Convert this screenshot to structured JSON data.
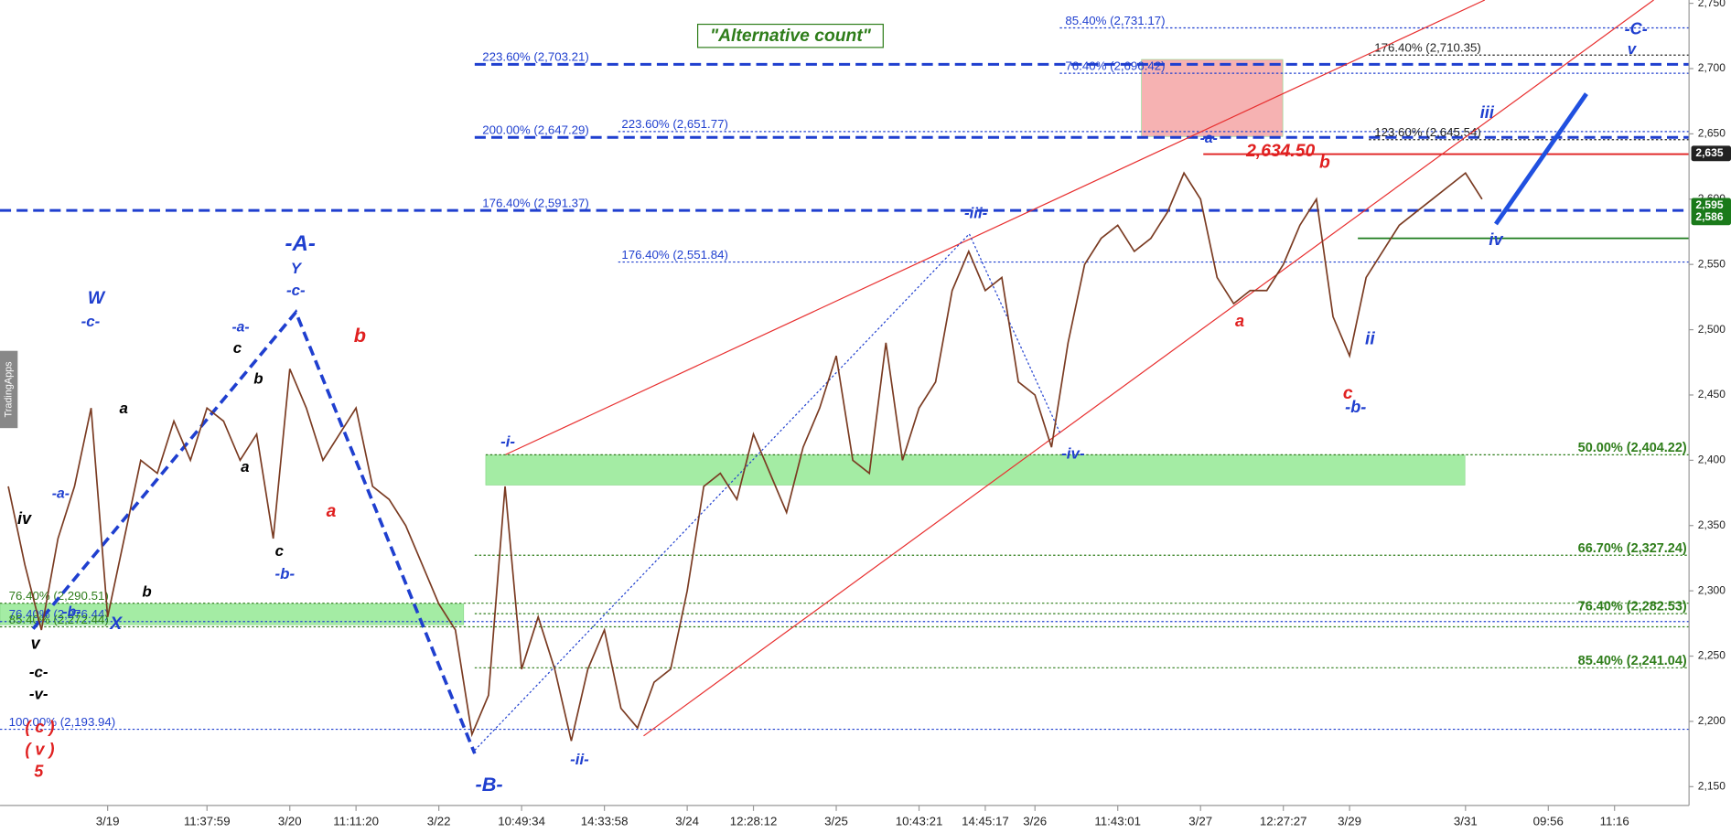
{
  "chart_data": {
    "type": "line",
    "title": "\"Alternative count\"",
    "watermark": "TradingApps",
    "categories": [
      null,
      null,
      null,
      null,
      null,
      null,
      "3/19",
      null,
      null,
      null,
      null,
      null,
      "11:37:59",
      null,
      null,
      null,
      null,
      "3/20",
      null,
      null,
      null,
      "11:11:20",
      null,
      null,
      null,
      null,
      "3/22",
      null,
      null,
      null,
      null,
      "10:49:34",
      null,
      null,
      null,
      null,
      "14:33:58",
      null,
      null,
      null,
      null,
      "3/24",
      null,
      null,
      null,
      "12:28:12",
      null,
      null,
      null,
      null,
      "3/25",
      null,
      null,
      null,
      null,
      "10:43:21",
      null,
      null,
      null,
      "14:45:17",
      null,
      null,
      "3/26",
      null,
      null,
      null,
      null,
      "11:43:01",
      null,
      null,
      null,
      null,
      "3/27",
      null,
      null,
      null,
      null,
      "12:27:27",
      null,
      null,
      null,
      "3/29",
      null,
      null,
      null,
      null,
      null,
      null,
      "3/31",
      null,
      null,
      null,
      null,
      "09:56",
      null,
      null,
      null,
      "11:16",
      null,
      null
    ],
    "series": [
      {
        "name": "Price",
        "color": "#7a3b22",
        "values": [
          2380,
          2320,
          2270,
          2340,
          2380,
          2440,
          2280,
          2340,
          2400,
          2390,
          2430,
          2400,
          2440,
          2430,
          2400,
          2420,
          2340,
          2470,
          2440,
          2400,
          2420,
          2440,
          2380,
          2370,
          2350,
          2320,
          2290,
          2270,
          2190,
          2220,
          2380,
          2240,
          2280,
          2240,
          2185,
          2240,
          2270,
          2210,
          2195,
          2230,
          2240,
          2300,
          2380,
          2390,
          2370,
          2420,
          2390,
          2360,
          2410,
          2440,
          2480,
          2400,
          2390,
          2490,
          2400,
          2440,
          2460,
          2530,
          2560,
          2530,
          2540,
          2460,
          2450,
          2410,
          2490,
          2550,
          2570,
          2580,
          2560,
          2570,
          2590,
          2620,
          2600,
          2540,
          2520,
          2530,
          2530,
          2550,
          2580,
          2600,
          2510,
          2480,
          2540,
          2560,
          2580,
          2590,
          2600,
          2610,
          2620,
          2600,
          null,
          null,
          null,
          null,
          null,
          null,
          null,
          null,
          null,
          null
        ]
      }
    ],
    "ylim": [
      2150,
      2750
    ],
    "yticks": [
      {
        "value": 2150,
        "label": "2,150"
      },
      {
        "value": 2200,
        "label": "2,200"
      },
      {
        "value": 2250,
        "label": "2,250"
      },
      {
        "value": 2300,
        "label": "2,300"
      },
      {
        "value": 2350,
        "label": "2,350"
      },
      {
        "value": 2400,
        "label": "2,400"
      },
      {
        "value": 2450,
        "label": "2,450"
      },
      {
        "value": 2500,
        "label": "2,500"
      },
      {
        "value": 2550,
        "label": "2,550"
      },
      {
        "value": 2600,
        "label": "2,600"
      },
      {
        "value": 2650,
        "label": "2,650"
      },
      {
        "value": 2700,
        "label": "2,700"
      },
      {
        "value": 2750,
        "label": "2,750"
      }
    ],
    "levels": [
      {
        "value": 2703.21,
        "label": "223.60% (2,703.21)",
        "color": "#1f3fcf",
        "style": "thick"
      },
      {
        "value": 2647.29,
        "label": "200.00% (2,647.29)",
        "color": "#1f3fcf",
        "style": "thick"
      },
      {
        "value": 2591.37,
        "label": "176.40% (2,591.37)",
        "color": "#1f3fcf",
        "style": "thick"
      },
      {
        "value": 2551.84,
        "label": "176.40% (2,551.84)",
        "color": "#1f3fcf",
        "style": "dotted"
      },
      {
        "value": 2651.77,
        "label": "223.60% (2,651.77)",
        "color": "#1f3fcf",
        "style": "dotted"
      },
      {
        "value": 2731.17,
        "label": "85.40% (2,731.17)",
        "color": "#1f3fcf",
        "style": "dotted"
      },
      {
        "value": 2696.42,
        "label": "76.40% (2,696.42)",
        "color": "#1f3fcf",
        "style": "dotted"
      },
      {
        "value": 2710.35,
        "label": "176.40% (2,710.35)",
        "color": "#222222",
        "style": "dotted"
      },
      {
        "value": 2645.54,
        "label": "123.60% (2,645.54)",
        "color": "#222222",
        "style": "dotted"
      },
      {
        "value": 2193.94,
        "label": "100.00% (2,193.94)",
        "color": "#1f3fcf",
        "style": "dotted"
      },
      {
        "value": 2290.51,
        "label": "76.40% (2,290.51)",
        "color": "#2e7d1a",
        "style": "dotted"
      },
      {
        "value": 2276.44,
        "label": "76.40% (2,276.44)",
        "color": "#1f3fcf",
        "style": "dotted"
      },
      {
        "value": 2272.44,
        "label": "85.40% (2,272.44)",
        "color": "#2e7d1a",
        "style": "dotted"
      },
      {
        "value": 2404.22,
        "label": "50.00% (2,404.22)",
        "color": "#2e7d1a",
        "style": "dotted"
      },
      {
        "value": 2327.24,
        "label": "66.70% (2,327.24)",
        "color": "#2e7d1a",
        "style": "dotted"
      },
      {
        "value": 2282.53,
        "label": "76.40% (2,282.53)",
        "color": "#2e7d1a",
        "style": "dotted"
      },
      {
        "value": 2241.04,
        "label": "85.40% (2,241.04)",
        "color": "#2e7d1a",
        "style": "dotted"
      },
      {
        "value": 2634.5,
        "label": "2,634.50",
        "color": "#e02020",
        "style": "solid"
      },
      {
        "value": 2570,
        "color": "#1a7a1a",
        "style": "solid"
      }
    ],
    "zones": [
      {
        "from": 2381,
        "to": 2404,
        "color": "#8ee88e"
      },
      {
        "from": 2274,
        "to": 2290,
        "color": "#8ee88e"
      },
      {
        "from": 2648,
        "to": 2707,
        "color": "#f5a0a0"
      }
    ],
    "price_tags": [
      {
        "value": 2635,
        "label": "2,635",
        "color": "#222222"
      },
      {
        "value": 2595,
        "label": "2,595",
        "color": "#1a7a1a"
      },
      {
        "value": 2586,
        "label": "2,586",
        "color": "#1a7a1a"
      }
    ],
    "annotations": [
      {
        "text": "-A-",
        "color": "#1f3fcf"
      },
      {
        "text": "Y",
        "color": "#1f3fcf"
      },
      {
        "text": "-c-",
        "color": "#1f3fcf"
      },
      {
        "text": "W",
        "color": "#1f3fcf"
      },
      {
        "text": "-c-",
        "color": "#1f3fcf"
      },
      {
        "text": "-a-",
        "color": "#1f3fcf"
      },
      {
        "text": "c",
        "color": "#000000"
      },
      {
        "text": "b",
        "color": "#000000"
      },
      {
        "text": "a",
        "color": "#000000"
      },
      {
        "text": "b",
        "color": "#e02020"
      },
      {
        "text": "a",
        "color": "#e02020"
      },
      {
        "text": "c",
        "color": "#000000"
      },
      {
        "text": "-b-",
        "color": "#1f3fcf"
      },
      {
        "text": "iv",
        "color": "#000000"
      },
      {
        "text": "-a-",
        "color": "#1f3fcf"
      },
      {
        "text": "a",
        "color": "#000000"
      },
      {
        "text": "b",
        "color": "#000000"
      },
      {
        "text": "X",
        "color": "#1f3fcf"
      },
      {
        "text": "-b-",
        "color": "#1f3fcf"
      },
      {
        "text": "v",
        "color": "#000000"
      },
      {
        "text": "-c-",
        "color": "#000000"
      },
      {
        "text": "-v-",
        "color": "#000000"
      },
      {
        "text": "( c )",
        "color": "#e02020"
      },
      {
        "text": "( v )",
        "color": "#e02020"
      },
      {
        "text": "5",
        "color": "#e02020"
      },
      {
        "text": "-B-",
        "color": "#1f3fcf"
      },
      {
        "text": "-i-",
        "color": "#1f3fcf"
      },
      {
        "text": "-ii-",
        "color": "#1f3fcf"
      },
      {
        "text": "-iii-",
        "color": "#1f3fcf"
      },
      {
        "text": "-iv-",
        "color": "#1f3fcf"
      },
      {
        "text": "-a-",
        "color": "#1f3fcf"
      },
      {
        "text": "b",
        "color": "#e02020"
      },
      {
        "text": "a",
        "color": "#e02020"
      },
      {
        "text": "c",
        "color": "#e02020"
      },
      {
        "text": "-b-",
        "color": "#1f3fcf"
      },
      {
        "text": "ii",
        "color": "#1f3fcf"
      },
      {
        "text": "iii",
        "color": "#1f3fcf"
      },
      {
        "text": "iv",
        "color": "#1f3fcf"
      },
      {
        "text": "-C-",
        "color": "#1f3fcf"
      },
      {
        "text": "v",
        "color": "#1f3fcf"
      }
    ]
  }
}
